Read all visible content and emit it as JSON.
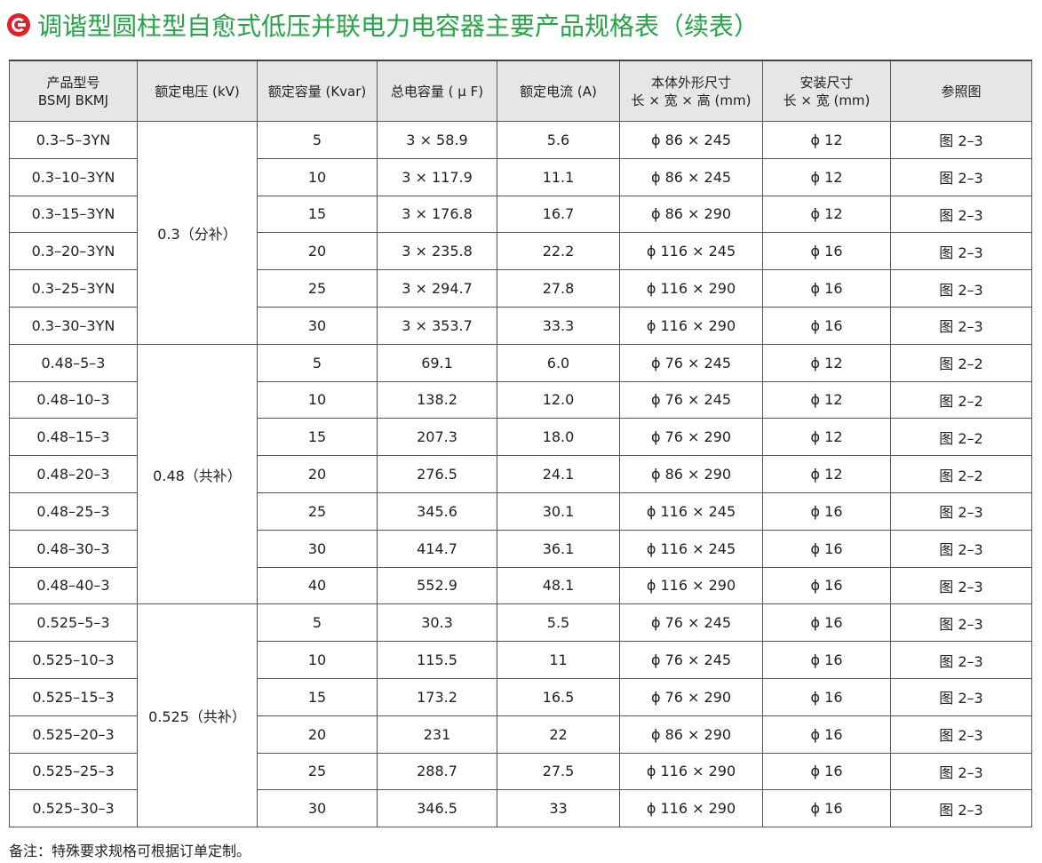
{
  "title": "调谐型圆柱型自愈式低压并联电力电容器主要产品规格表（续表）",
  "logo_icon": "c-logo-icon",
  "accent_color": "#24a646",
  "logo_color": "#e01f26",
  "headers": {
    "model_line1": "产品型号",
    "model_line2": "BSMJ BKMJ",
    "voltage": "额定电压 (kV)",
    "capacity": "额定容量 (Kvar)",
    "total_capacitance": "总电容量 ( μ F)",
    "current": "额定电流 (A)",
    "size_line1": "本体外形尺寸",
    "size_line2": "长 × 宽 × 高 (mm)",
    "install_line1": "安装尺寸",
    "install_line2": "长 × 宽 (mm)",
    "figure": "参照图"
  },
  "groups": [
    {
      "voltage": "0.3（分补）",
      "rows": [
        {
          "model": "0.3–5–3YN",
          "capacity": "5",
          "capacitance": "3 × 58.9",
          "current": "5.6",
          "size": "ϕ 86 × 245",
          "install": "ϕ 12",
          "figure": "图 2–3"
        },
        {
          "model": "0.3–10–3YN",
          "capacity": "10",
          "capacitance": "3 × 117.9",
          "current": "11.1",
          "size": "ϕ 86 × 245",
          "install": "ϕ 12",
          "figure": "图 2–3"
        },
        {
          "model": "0.3–15–3YN",
          "capacity": "15",
          "capacitance": "3 × 176.8",
          "current": "16.7",
          "size": "ϕ 86 × 290",
          "install": "ϕ 12",
          "figure": "图 2–3"
        },
        {
          "model": "0.3–20–3YN",
          "capacity": "20",
          "capacitance": "3 × 235.8",
          "current": "22.2",
          "size": "ϕ 116 × 245",
          "install": "ϕ 16",
          "figure": "图 2–3"
        },
        {
          "model": "0.3–25–3YN",
          "capacity": "25",
          "capacitance": "3 × 294.7",
          "current": "27.8",
          "size": "ϕ 116 × 290",
          "install": "ϕ 16",
          "figure": "图 2–3"
        },
        {
          "model": "0.3–30–3YN",
          "capacity": "30",
          "capacitance": "3 × 353.7",
          "current": "33.3",
          "size": "ϕ 116 × 290",
          "install": "ϕ 16",
          "figure": "图 2–3"
        }
      ]
    },
    {
      "voltage": "0.48（共补）",
      "rows": [
        {
          "model": "0.48–5–3",
          "capacity": "5",
          "capacitance": "69.1",
          "current": "6.0",
          "size": "ϕ 76 × 245",
          "install": "ϕ 12",
          "figure": "图 2–2"
        },
        {
          "model": "0.48–10–3",
          "capacity": "10",
          "capacitance": "138.2",
          "current": "12.0",
          "size": "ϕ 76 × 245",
          "install": "ϕ 12",
          "figure": "图 2–2"
        },
        {
          "model": "0.48–15–3",
          "capacity": "15",
          "capacitance": "207.3",
          "current": "18.0",
          "size": "ϕ 76 × 290",
          "install": "ϕ 12",
          "figure": "图 2–2"
        },
        {
          "model": "0.48–20–3",
          "capacity": "20",
          "capacitance": "276.5",
          "current": "24.1",
          "size": "ϕ 86 × 290",
          "install": "ϕ 12",
          "figure": "图 2–2"
        },
        {
          "model": "0.48–25–3",
          "capacity": "25",
          "capacitance": "345.6",
          "current": "30.1",
          "size": "ϕ 116 × 245",
          "install": "ϕ 16",
          "figure": "图 2–3"
        },
        {
          "model": "0.48–30–3",
          "capacity": "30",
          "capacitance": "414.7",
          "current": "36.1",
          "size": "ϕ 116 × 245",
          "install": "ϕ 16",
          "figure": "图 2–3"
        },
        {
          "model": "0.48–40–3",
          "capacity": "40",
          "capacitance": "552.9",
          "current": "48.1",
          "size": "ϕ 116 × 290",
          "install": "ϕ 16",
          "figure": "图 2–3"
        }
      ]
    },
    {
      "voltage": "0.525（共补）",
      "rows": [
        {
          "model": "0.525–5–3",
          "capacity": "5",
          "capacitance": "30.3",
          "current": "5.5",
          "size": "ϕ 76 × 245",
          "install": "ϕ 16",
          "figure": "图 2–3"
        },
        {
          "model": "0.525–10–3",
          "capacity": "10",
          "capacitance": "115.5",
          "current": "11",
          "size": "ϕ 76 × 245",
          "install": "ϕ 16",
          "figure": "图 2–3"
        },
        {
          "model": "0.525–15–3",
          "capacity": "15",
          "capacitance": "173.2",
          "current": "16.5",
          "size": "ϕ 76 × 290",
          "install": "ϕ 16",
          "figure": "图 2–3"
        },
        {
          "model": "0.525–20–3",
          "capacity": "20",
          "capacitance": "231",
          "current": "22",
          "size": "ϕ 86 × 290",
          "install": "ϕ 16",
          "figure": "图 2–3"
        },
        {
          "model": "0.525–25–3",
          "capacity": "25",
          "capacitance": "288.7",
          "current": "27.5",
          "size": "ϕ 116 × 290",
          "install": "ϕ 16",
          "figure": "图 2–3"
        },
        {
          "model": "0.525–30–3",
          "capacity": "30",
          "capacitance": "346.5",
          "current": "33",
          "size": "ϕ 116 × 290",
          "install": "ϕ 16",
          "figure": "图 2–3"
        }
      ]
    }
  ],
  "note": "备注：特殊要求规格可根据订单定制。"
}
